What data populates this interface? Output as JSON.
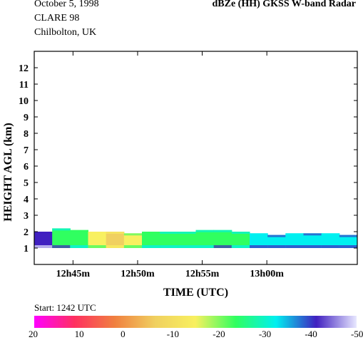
{
  "header": {
    "date": "October  5, 1998",
    "campaign": "CLARE 98",
    "location": "Chilbolton, UK",
    "title": "dBZe (HH)   GKSS  W-band Radar"
  },
  "chart_data": {
    "type": "heatmap",
    "title": "dBZe (HH)   GKSS  W-band Radar",
    "xlabel": "TIME (UTC)",
    "ylabel": "HEIGHT AGL (km)",
    "xlim": [
      "12h42m",
      "13h07m"
    ],
    "ylim": [
      0,
      13
    ],
    "x_ticks": [
      "12h45m",
      "12h50m",
      "12h55m",
      "13h00m"
    ],
    "y_ticks": [
      1,
      2,
      3,
      4,
      5,
      6,
      7,
      8,
      9,
      10,
      11,
      12
    ],
    "grid": false,
    "start_label": "Start: 1242 UTC",
    "colorbar": {
      "label_values": [
        20,
        10,
        0,
        -10,
        -20,
        -30,
        -40,
        -50
      ],
      "range": [
        20,
        -50
      ],
      "colors": [
        "#ff00ff",
        "#ff3060",
        "#f08040",
        "#f0d060",
        "#f8f060",
        "#30ff60",
        "#00f0f0",
        "#4020c0",
        "#e8e8ff"
      ]
    },
    "cloud_layer": {
      "base_km": 1.0,
      "top_km": [
        2.0,
        2.2,
        2.1,
        2.0,
        2.0,
        1.9,
        2.0,
        2.0,
        2.0,
        2.1,
        2.1,
        2.0,
        1.9,
        1.8,
        1.9,
        1.9,
        1.9,
        1.8
      ],
      "reflectivity_dbze": [
        -38,
        -28,
        -22,
        -12,
        -8,
        -14,
        -22,
        -26,
        -24,
        -26,
        -28,
        -26,
        -30,
        -32,
        -30,
        -34,
        -30,
        -32
      ]
    }
  }
}
